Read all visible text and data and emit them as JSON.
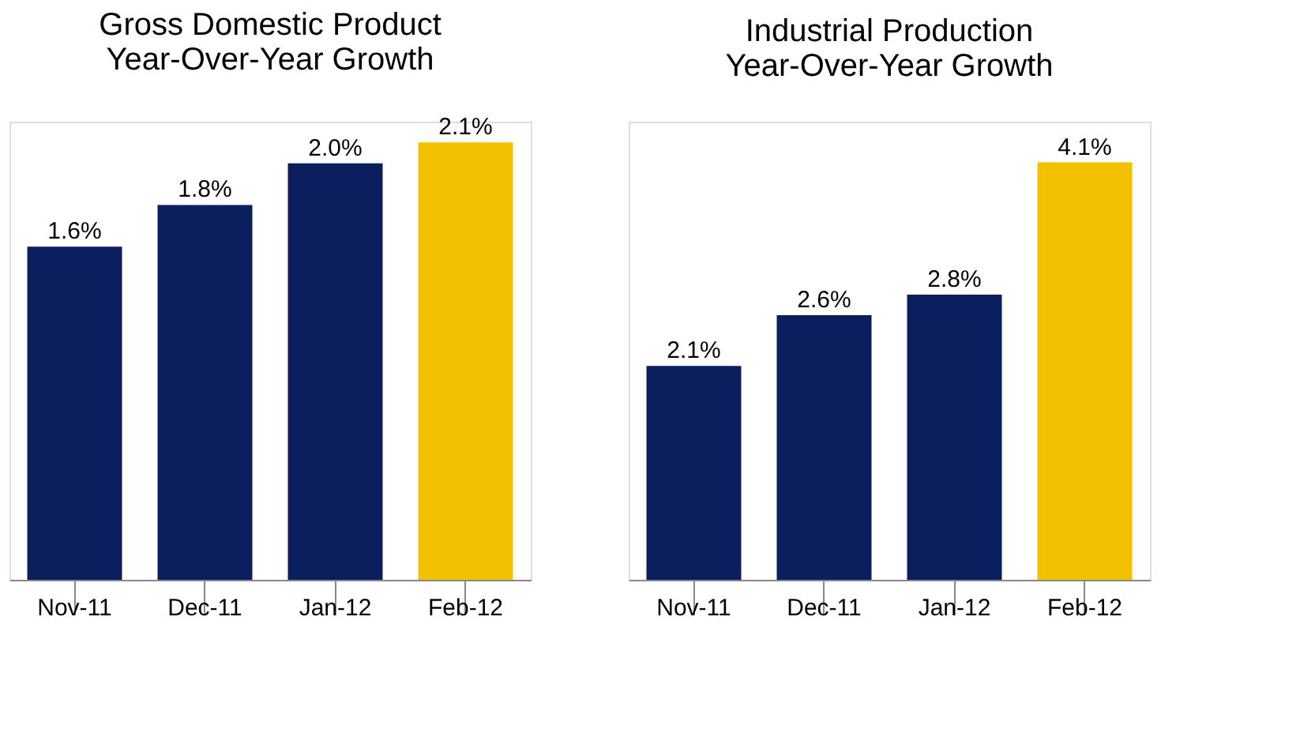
{
  "chart_data": [
    {
      "type": "bar",
      "title": "Gross Domestic Product\nYear-Over-Year Growth",
      "categories": [
        "Nov-11",
        "Dec-11",
        "Jan-12",
        "Feb-12"
      ],
      "values": [
        1.6,
        1.8,
        2.0,
        2.1
      ],
      "colors": [
        "#0b1f5e",
        "#0b1f5e",
        "#0b1f5e",
        "#f2c200"
      ],
      "value_labels": [
        "1.6%",
        "1.8%",
        "2.0%",
        "2.1%"
      ],
      "grid": false,
      "tick_labels": "x"
    },
    {
      "type": "bar",
      "title": "Industrial Production\nYear-Over-Year Growth",
      "categories": [
        "Nov-11",
        "Dec-11",
        "Jan-12",
        "Feb-12"
      ],
      "values": [
        2.1,
        2.6,
        2.8,
        4.1
      ],
      "colors": [
        "#0b1f5e",
        "#0b1f5e",
        "#0b1f5e",
        "#f2c200"
      ],
      "value_labels": [
        "2.1%",
        "2.6%",
        "2.8%",
        "4.1%"
      ],
      "grid": false,
      "tick_labels": "x"
    }
  ]
}
